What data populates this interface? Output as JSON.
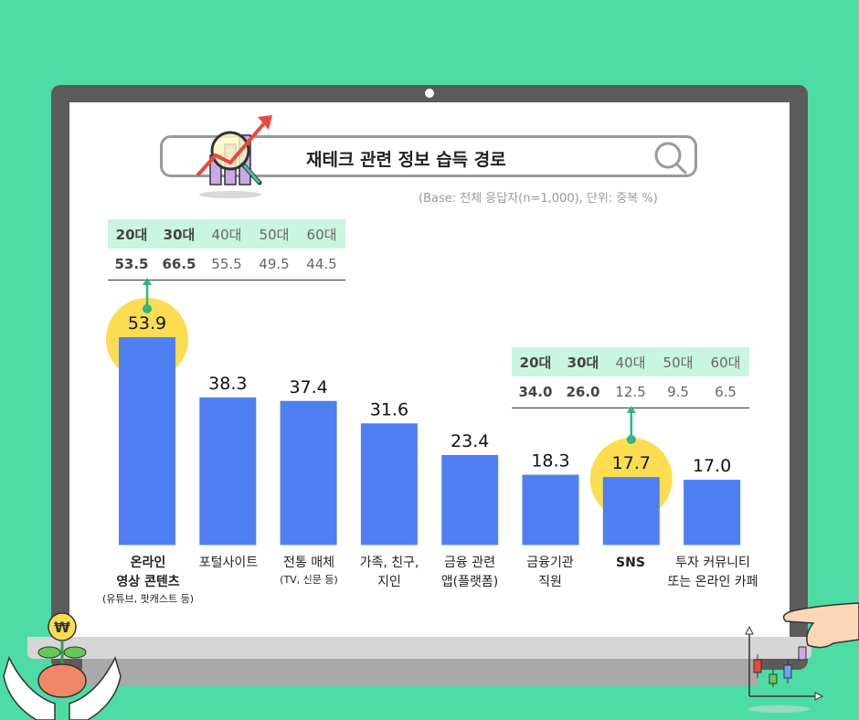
{
  "page": {
    "title": "재테크 관련 정보 습득 경로",
    "base_note": "(Base: 전체 응답자(n=1,000), 단위: 중복 %)"
  },
  "colors": {
    "bar": "#4f7ff0",
    "highlight": "#fcdd52",
    "accent": "#2cb785",
    "table_header": "#c9f5e1",
    "background": "#4edca6"
  },
  "chart_data": {
    "type": "bar",
    "categories": [
      "온라인 영상 콘텐츠 (유튜브, 팟캐스트 등)",
      "포털사이트",
      "전통 매체 (TV, 신문 등)",
      "가족, 친구, 지인",
      "금융 관련 앱(플랫폼)",
      "금융기관 직원",
      "SNS",
      "투자 커뮤니티 또는 온라인 카페"
    ],
    "values": [
      53.9,
      38.3,
      37.4,
      31.6,
      23.4,
      18.3,
      17.7,
      17.0
    ],
    "value_labels": [
      "53.9",
      "38.3",
      "37.4",
      "31.6",
      "23.4",
      "18.3",
      "17.7",
      "17.0"
    ],
    "highlighted": [
      "온라인 영상 콘텐츠 (유튜브, 팟캐스트 등)",
      "SNS"
    ],
    "ylim": [
      0,
      60
    ]
  },
  "labels": {
    "cat1": {
      "line1": "온라인",
      "line2": "영상 콘텐츠",
      "line3": "(유튜브, 팟캐스트 등)"
    },
    "cat2": {
      "line1": "포털사이트"
    },
    "cat3": {
      "line1": "전통 매체",
      "line2": "(TV, 신문 등)"
    },
    "cat4": {
      "line1": "가족, 친구,",
      "line2": "지인"
    },
    "cat5": {
      "line1": "금융 관련",
      "line2": "앱(플랫폼)"
    },
    "cat6": {
      "line1": "금융기관",
      "line2": "직원"
    },
    "cat7": {
      "line1": "SNS"
    },
    "cat8": {
      "line1": "투자 커뮤니티",
      "line2": "또는 온라인 카페"
    }
  },
  "age_tables": {
    "online_video": {
      "headers": [
        "20대",
        "30대",
        "40대",
        "50대",
        "60대"
      ],
      "values": [
        "53.5",
        "66.5",
        "55.5",
        "49.5",
        "44.5"
      ]
    },
    "sns": {
      "headers": [
        "20대",
        "30대",
        "40대",
        "50대",
        "60대"
      ],
      "values": [
        "34.0",
        "26.0",
        "12.5",
        "9.5",
        "6.5"
      ]
    }
  }
}
